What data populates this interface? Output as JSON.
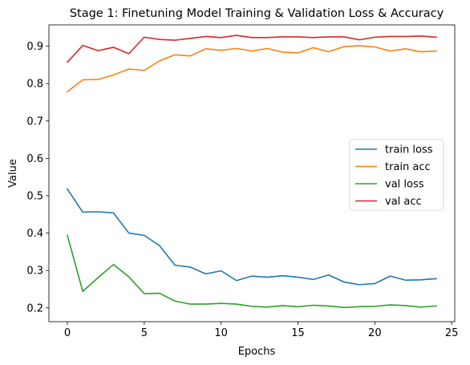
{
  "chart_data": {
    "type": "line",
    "title": "Stage 1: Finetuning Model Training & Validation Loss & Accuracy",
    "xlabel": "Epochs",
    "ylabel": "Value",
    "xlim": [
      -1.2,
      25.2
    ],
    "ylim": [
      0.163,
      0.957
    ],
    "x_ticks": [
      0,
      5,
      10,
      15,
      20,
      25
    ],
    "y_ticks": [
      0.2,
      0.3,
      0.4,
      0.5,
      0.6,
      0.7,
      0.8,
      0.9
    ],
    "x_tick_labels": [
      "0",
      "5",
      "10",
      "15",
      "20",
      "25"
    ],
    "y_tick_labels": [
      "0.2",
      "0.3",
      "0.4",
      "0.5",
      "0.6",
      "0.7",
      "0.8",
      "0.9"
    ],
    "grid": false,
    "legend_position": "center-right",
    "x": [
      0,
      1,
      2,
      3,
      4,
      5,
      6,
      7,
      8,
      9,
      10,
      11,
      12,
      13,
      14,
      15,
      16,
      17,
      18,
      19,
      20,
      21,
      22,
      23,
      24
    ],
    "series": [
      {
        "name": "train loss",
        "color": "#1f77b4",
        "values": [
          0.518,
          0.456,
          0.457,
          0.454,
          0.4,
          0.394,
          0.366,
          0.314,
          0.309,
          0.291,
          0.299,
          0.273,
          0.285,
          0.282,
          0.286,
          0.282,
          0.276,
          0.288,
          0.269,
          0.262,
          0.265,
          0.285,
          0.274,
          0.275,
          0.278
        ]
      },
      {
        "name": "train acc",
        "color": "#ff7f0e",
        "values": [
          0.778,
          0.81,
          0.811,
          0.823,
          0.839,
          0.835,
          0.861,
          0.877,
          0.874,
          0.893,
          0.889,
          0.894,
          0.887,
          0.894,
          0.884,
          0.882,
          0.896,
          0.885,
          0.899,
          0.901,
          0.898,
          0.887,
          0.893,
          0.885,
          0.887
        ]
      },
      {
        "name": "val loss",
        "color": "#2ca02c",
        "values": [
          0.394,
          0.244,
          0.281,
          0.316,
          0.283,
          0.238,
          0.239,
          0.218,
          0.21,
          0.21,
          0.212,
          0.21,
          0.204,
          0.202,
          0.206,
          0.203,
          0.207,
          0.205,
          0.201,
          0.203,
          0.204,
          0.208,
          0.206,
          0.202,
          0.205
        ]
      },
      {
        "name": "val acc",
        "color": "#d62728",
        "values": [
          0.857,
          0.902,
          0.888,
          0.897,
          0.88,
          0.924,
          0.918,
          0.916,
          0.921,
          0.926,
          0.923,
          0.929,
          0.923,
          0.923,
          0.925,
          0.925,
          0.923,
          0.925,
          0.925,
          0.917,
          0.924,
          0.926,
          0.926,
          0.927,
          0.924
        ]
      }
    ]
  }
}
